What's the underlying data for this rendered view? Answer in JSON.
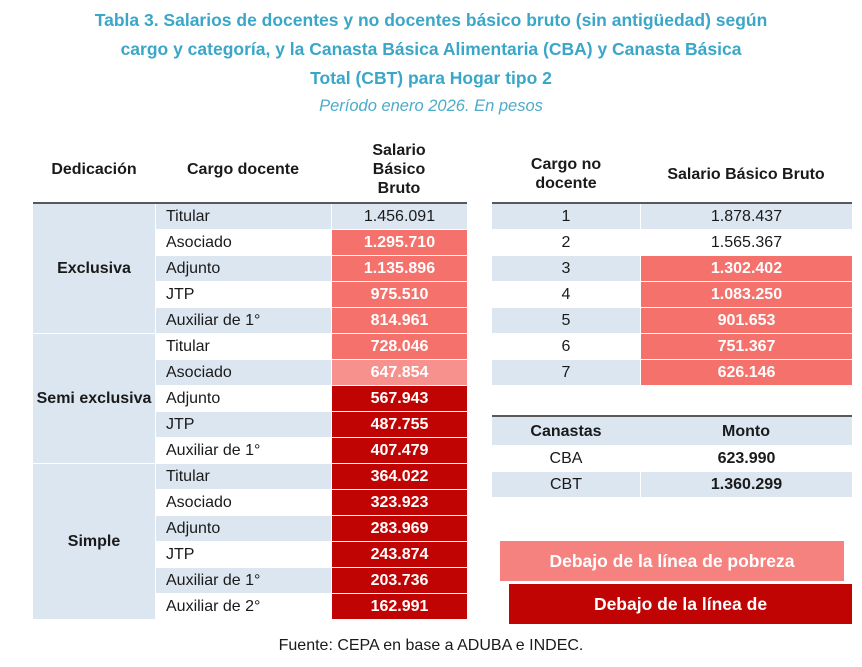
{
  "title": {
    "line1": "Tabla 3. Salarios de docentes y no docentes básico bruto (sin antigüedad) según",
    "line2": "cargo y categoría, y la Canasta Básica Alimentaria (CBA) y Canasta Básica",
    "line3": "Total (CBT) para Hogar tipo 2",
    "subtitle": "Período enero 2026. En pesos"
  },
  "colors": {
    "title_teal": "#3aa6c8",
    "subtitle_teal": "#4dabc9",
    "stripe_blue": "#dce6f1",
    "poverty_pink": "#f4716c",
    "poverty_light_pink": "#f6918e",
    "poverty_legend_pink": "#f5827f",
    "indigence_red": "#c00404"
  },
  "chart_data": [
    {
      "type": "table",
      "name": "salarios_docentes",
      "headers": [
        "Dedicación",
        "Cargo docente",
        "Salario Básico Bruto"
      ],
      "groups": [
        {
          "dedication": "Exclusiva",
          "rows": [
            {
              "cargo": "Titular",
              "salario": "1.456.091",
              "status": "none"
            },
            {
              "cargo": "Asociado",
              "salario": "1.295.710",
              "status": "poverty"
            },
            {
              "cargo": "Adjunto",
              "salario": "1.135.896",
              "status": "poverty"
            },
            {
              "cargo": "JTP",
              "salario": "975.510",
              "status": "poverty"
            },
            {
              "cargo": "Auxiliar de 1°",
              "salario": "814.961",
              "status": "poverty"
            }
          ]
        },
        {
          "dedication": "Semi exclusiva",
          "rows": [
            {
              "cargo": "Titular",
              "salario": "728.046",
              "status": "poverty"
            },
            {
              "cargo": "Asociado",
              "salario": "647.854",
              "status": "poverty_light"
            },
            {
              "cargo": "Adjunto",
              "salario": "567.943",
              "status": "indigence"
            },
            {
              "cargo": "JTP",
              "salario": "487.755",
              "status": "indigence"
            },
            {
              "cargo": "Auxiliar de 1°",
              "salario": "407.479",
              "status": "indigence"
            }
          ]
        },
        {
          "dedication": "Simple",
          "rows": [
            {
              "cargo": "Titular",
              "salario": "364.022",
              "status": "indigence"
            },
            {
              "cargo": "Asociado",
              "salario": "323.923",
              "status": "indigence"
            },
            {
              "cargo": "Adjunto",
              "salario": "283.969",
              "status": "indigence"
            },
            {
              "cargo": "JTP",
              "salario": "243.874",
              "status": "indigence"
            },
            {
              "cargo": "Auxiliar de 1°",
              "salario": "203.736",
              "status": "indigence"
            },
            {
              "cargo": "Auxiliar de 2°",
              "salario": "162.991",
              "status": "indigence"
            }
          ]
        }
      ]
    },
    {
      "type": "table",
      "name": "salarios_no_docentes",
      "headers": [
        "Cargo no docente",
        "Salario Básico Bruto"
      ],
      "rows": [
        {
          "cargo": "1",
          "salario": "1.878.437",
          "status": "none"
        },
        {
          "cargo": "2",
          "salario": "1.565.367",
          "status": "none"
        },
        {
          "cargo": "3",
          "salario": "1.302.402",
          "status": "poverty"
        },
        {
          "cargo": "4",
          "salario": "1.083.250",
          "status": "poverty"
        },
        {
          "cargo": "5",
          "salario": "901.653",
          "status": "poverty"
        },
        {
          "cargo": "6",
          "salario": "751.367",
          "status": "poverty"
        },
        {
          "cargo": "7",
          "salario": "626.146",
          "status": "poverty"
        }
      ]
    },
    {
      "type": "table",
      "name": "canastas",
      "headers": [
        "Canastas",
        "Monto"
      ],
      "rows": [
        {
          "label": "CBA",
          "monto": "623.990"
        },
        {
          "label": "CBT",
          "monto": "1.360.299"
        }
      ]
    }
  ],
  "legend": [
    {
      "label": "Debajo de la línea de pobreza",
      "status": "poverty"
    },
    {
      "label": "Debajo de la línea de",
      "status": "indigence"
    }
  ],
  "footer": "Fuente: CEPA en base a ADUBA e INDEC."
}
